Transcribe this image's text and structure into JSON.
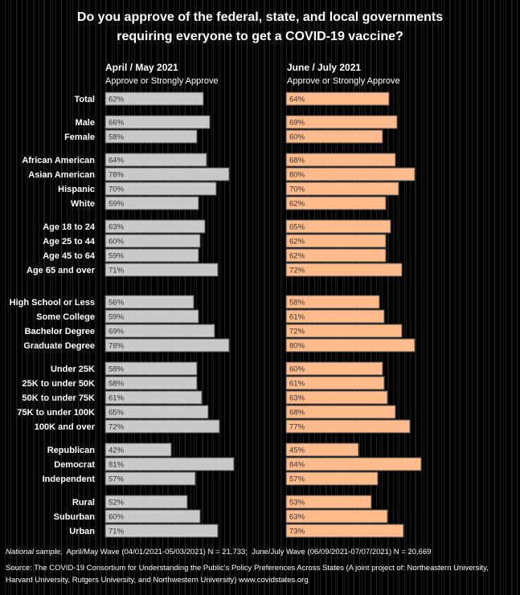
{
  "chart_data": {
    "type": "bar",
    "orientation": "horizontal",
    "title": "Do you approve of the federal, state, and local governments requiring everyone to get a COVID-19 vaccine?",
    "title_lines": [
      "Do you approve of the federal, state, and local governments",
      "requiring everyone to get a COVID-19 vaccine?"
    ],
    "panels": [
      {
        "period": "April / May 2021",
        "subtitle": "Approve or Strongly Approve",
        "color": "#c9c9c9"
      },
      {
        "period": "June / July 2021",
        "subtitle": "Approve or Strongly Approve",
        "color": "#ffbb8c"
      }
    ],
    "groups": [
      {
        "categories": [
          "Total"
        ],
        "april_may": [
          62
        ],
        "june_july": [
          64
        ]
      },
      {
        "categories": [
          "Male",
          "Female"
        ],
        "april_may": [
          66,
          58
        ],
        "june_july": [
          69,
          60
        ]
      },
      {
        "categories": [
          "African American",
          "Asian American",
          "Hispanic",
          "White"
        ],
        "april_may": [
          64,
          78,
          70,
          59
        ],
        "june_july": [
          68,
          80,
          70,
          62
        ]
      },
      {
        "categories": [
          "Age 18 to 24",
          "Age 25 to 44",
          "Age 45 to 64",
          "Age 65 and over"
        ],
        "april_may": [
          63,
          60,
          59,
          71
        ],
        "june_july": [
          65,
          62,
          62,
          72
        ]
      },
      {
        "categories": [
          "High School or Less",
          "Some College",
          "Bachelor Degree",
          "Graduate Degree"
        ],
        "april_may": [
          56,
          59,
          69,
          78
        ],
        "june_july": [
          58,
          61,
          72,
          80
        ]
      },
      {
        "categories": [
          "Under 25K",
          "25K to under 50K",
          "50K to under 75K",
          "75K to under 100K",
          "100K and over"
        ],
        "april_may": [
          58,
          58,
          61,
          65,
          72
        ],
        "june_july": [
          60,
          61,
          63,
          68,
          77
        ]
      },
      {
        "categories": [
          "Republican",
          "Democrat",
          "Independent"
        ],
        "april_may": [
          42,
          81,
          57
        ],
        "june_july": [
          45,
          84,
          57
        ]
      },
      {
        "categories": [
          "Rural",
          "Suburban",
          "Urban"
        ],
        "april_may": [
          52,
          60,
          71
        ],
        "june_july": [
          53,
          63,
          73
        ]
      }
    ],
    "value_suffix": "%",
    "xlim": [
      0,
      100
    ],
    "grid": false,
    "legend": "none"
  },
  "footnote": {
    "italic_label": "National sample,",
    "text": "  April/May Wave (04/01/2021-05/03/2021) N = 21,733;  June/July Wave (06/09/2021-07/07/2021) N = 20,669"
  },
  "source": "Source: The COVID-19 Consortium for Understanding the Public's Policy Preferences Across States (A joint project of: Northeastern University, Harvard University, Rutgers University, and Northwestern University) www.covidstates.org"
}
